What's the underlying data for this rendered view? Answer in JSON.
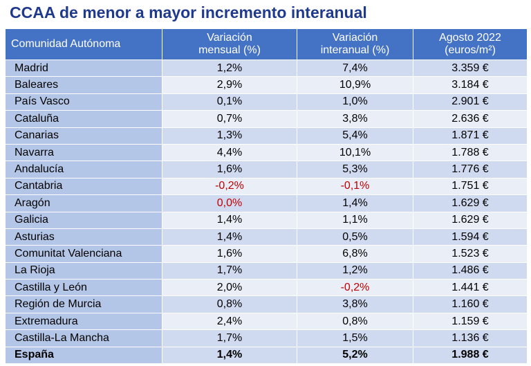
{
  "title": "CCAA de menor a mayor incremento interanual",
  "header": {
    "col1": "Comunidad Autónoma",
    "col2_line1": "Variación",
    "col2_line2": "mensual (%)",
    "col3_line1": "Variación",
    "col3_line2": "interanual (%)",
    "col4_line1": "Agosto 2022",
    "col4_line2": "(euros/m²)"
  },
  "colors": {
    "title": "#1f3a8c",
    "header_bg": "#4472c4",
    "negative": "#c00000"
  },
  "rows": [
    {
      "name": "Madrid",
      "mensual": "1,2%",
      "interanual": "7,4%",
      "precio": "3.359 €"
    },
    {
      "name": "Baleares",
      "mensual": "2,9%",
      "interanual": "10,9%",
      "precio": "3.184 €"
    },
    {
      "name": "País Vasco",
      "mensual": "0,1%",
      "interanual": "1,0%",
      "precio": "2.901 €"
    },
    {
      "name": "Cataluña",
      "mensual": "0,7%",
      "interanual": "3,8%",
      "precio": "2.636 €"
    },
    {
      "name": "Canarias",
      "mensual": "1,3%",
      "interanual": "5,4%",
      "precio": "1.871 €"
    },
    {
      "name": "Navarra",
      "mensual": "4,4%",
      "interanual": "10,1%",
      "precio": "1.788 €"
    },
    {
      "name": "Andalucía",
      "mensual": "1,6%",
      "interanual": "5,3%",
      "precio": "1.776 €"
    },
    {
      "name": "Cantabria",
      "mensual": "-0,2%",
      "interanual": "-0,1%",
      "precio": "1.751 €"
    },
    {
      "name": "Aragón",
      "mensual": "0,0%",
      "interanual": "1,4%",
      "precio": "1.629 €"
    },
    {
      "name": "Galicia",
      "mensual": "1,4%",
      "interanual": "1,1%",
      "precio": "1.629 €"
    },
    {
      "name": "Asturias",
      "mensual": "1,4%",
      "interanual": "0,5%",
      "precio": "1.594 €"
    },
    {
      "name": "Comunitat Valenciana",
      "mensual": "1,6%",
      "interanual": "6,8%",
      "precio": "1.523 €"
    },
    {
      "name": "La Rioja",
      "mensual": "1,7%",
      "interanual": "1,2%",
      "precio": "1.486 €"
    },
    {
      "name": "Castilla y León",
      "mensual": "2,0%",
      "interanual": "-0,2%",
      "precio": "1.441 €"
    },
    {
      "name": "Región de Murcia",
      "mensual": "0,8%",
      "interanual": "3,8%",
      "precio": "1.160 €"
    },
    {
      "name": "Extremadura",
      "mensual": "2,4%",
      "interanual": "0,8%",
      "precio": "1.159 €"
    },
    {
      "name": "Castilla-La Mancha",
      "mensual": "1,7%",
      "interanual": "1,5%",
      "precio": "1.136 €"
    }
  ],
  "total": {
    "name": "España",
    "mensual": "1,4%",
    "interanual": "5,2%",
    "precio": "1.988 €"
  },
  "highlight_red": [
    {
      "row": "Cantabria",
      "field": "mensual"
    },
    {
      "row": "Cantabria",
      "field": "interanual"
    },
    {
      "row": "Aragón",
      "field": "mensual"
    },
    {
      "row": "Castilla y León",
      "field": "interanual"
    }
  ]
}
